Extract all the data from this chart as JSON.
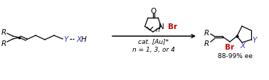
{
  "bg_color": "#ffffff",
  "figsize": [
    3.78,
    1.14
  ],
  "dpi": 100,
  "left_mol": {
    "R_color": "#000000",
    "Y_color": "#3333cc",
    "X_color": "#3333cc"
  },
  "reagent": {
    "Br_color": "#cc0000",
    "cat_text": "cat. [Au]*",
    "n_text": "n = 1, 3, or 4"
  },
  "arrow_color": "#000000",
  "right_mol": {
    "Br_color": "#cc0000",
    "X_color": "#3333cc",
    "Y_color": "#3333cc",
    "R_color": "#000000",
    "ee_text": "88-99% ee"
  }
}
